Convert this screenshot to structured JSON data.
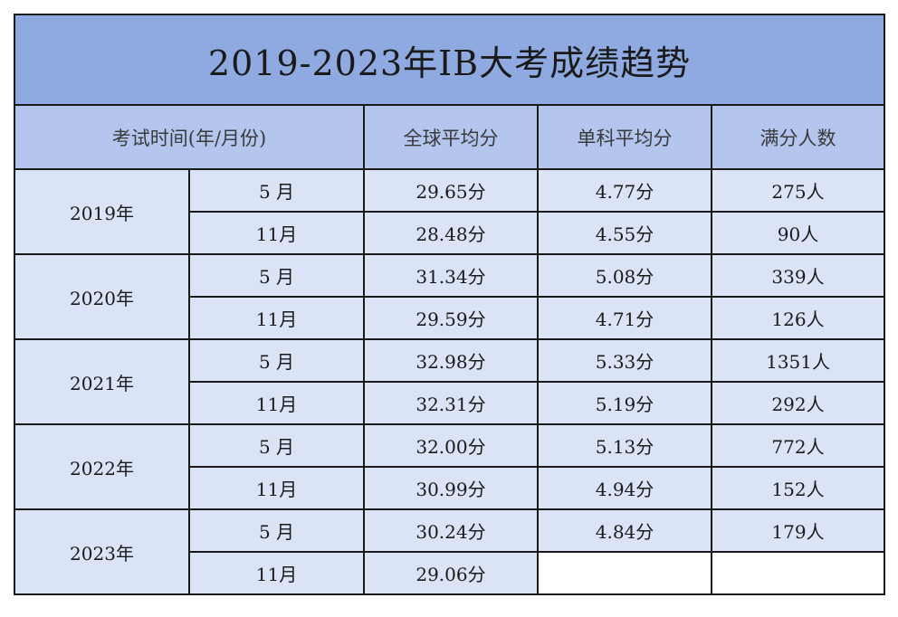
{
  "title": "2019-2023年IB大考成绩趋势",
  "headers": {
    "time": "考试时间(年/月份)",
    "global_avg": "全球平均分",
    "subject_avg": "单科平均分",
    "full_marks": "满分人数"
  },
  "years": [
    {
      "year": "2019年",
      "rows": [
        {
          "month": "5 月",
          "global_avg": "29.65分",
          "subject_avg": "4.77分",
          "full_marks": "275人"
        },
        {
          "month": "11月",
          "global_avg": "28.48分",
          "subject_avg": "4.55分",
          "full_marks": "90人"
        }
      ]
    },
    {
      "year": "2020年",
      "rows": [
        {
          "month": "5 月",
          "global_avg": "31.34分",
          "subject_avg": "5.08分",
          "full_marks": "339人"
        },
        {
          "month": "11月",
          "global_avg": "29.59分",
          "subject_avg": "4.71分",
          "full_marks": "126人"
        }
      ]
    },
    {
      "year": "2021年",
      "rows": [
        {
          "month": "5 月",
          "global_avg": "32.98分",
          "subject_avg": "5.33分",
          "full_marks": "1351人"
        },
        {
          "month": "11月",
          "global_avg": "32.31分",
          "subject_avg": "5.19分",
          "full_marks": "292人"
        }
      ]
    },
    {
      "year": "2022年",
      "rows": [
        {
          "month": "5 月",
          "global_avg": "32.00分",
          "subject_avg": "5.13分",
          "full_marks": "772人"
        },
        {
          "month": "11月",
          "global_avg": "30.99分",
          "subject_avg": "4.94分",
          "full_marks": "152人"
        }
      ]
    },
    {
      "year": "2023年",
      "rows": [
        {
          "month": "5 月",
          "global_avg": "30.24分",
          "subject_avg": "4.84分",
          "full_marks": "179人"
        },
        {
          "month": "11月",
          "global_avg": "29.06分",
          "subject_avg": "",
          "full_marks": ""
        }
      ]
    }
  ],
  "colors": {
    "title_bg": "#8fa9e1",
    "header_bg": "#b4c6ee",
    "cell_bg": "#dbe3f7",
    "border": "#1a1a1a"
  }
}
